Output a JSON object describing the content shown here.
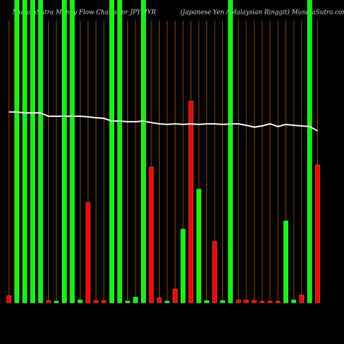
{
  "chart_data": {
    "type": "bar",
    "title": "MunafaSutra Money Flow Charts for JPYMYR",
    "subtitle": "(Japanese Yen / Malaysian Ringgit) MunafaSutra.com",
    "categories": [
      null,
      null,
      null,
      null,
      null,
      null,
      null,
      null,
      null,
      null,
      null,
      null,
      null,
      null,
      null,
      null,
      null,
      null,
      null,
      null,
      null,
      null,
      null,
      null,
      null,
      null,
      null,
      null,
      null,
      null,
      null,
      null,
      null,
      null,
      null,
      null,
      null,
      null,
      null,
      null
    ],
    "ylim": [
      0,
      100
    ],
    "background": "#000000",
    "grid_color": "#b35f00",
    "series": [
      {
        "type": "bar",
        "colors": [
          "#ff0000",
          "#00ff00",
          "#00ff00",
          "#00ff00",
          "#00ff00",
          "#ff0000",
          "#00ff00",
          "#00ff00",
          "#00ff00",
          "#00ff00",
          "#ff0000",
          "#ff0000",
          "#ff0000",
          "#00ff00",
          "#00ff00",
          "#00ff00",
          "#00ff00",
          "#00ff00",
          "#ff0000",
          "#ff0000",
          "#00ff00",
          "#ff0000",
          "#00ff00",
          "#ff0000",
          "#00ff00",
          "#00ff00",
          "#ff0000",
          "#00ff00",
          "#00ff00",
          "#ff0000",
          "#ff0000",
          "#ff0000",
          "#ff0000",
          "#ff0000",
          "#ff0000",
          "#00ff00",
          "#00ff00",
          "#ff0000",
          "#00ff00",
          "#ff0000"
        ],
        "values": [
          2.3,
          100,
          100,
          100,
          100,
          0.7,
          0.5,
          100,
          100,
          0.9,
          33,
          0.7,
          0.7,
          100,
          100,
          0.5,
          1.8,
          100,
          44.8,
          1.6,
          0.5,
          4.5,
          24.3,
          66.6,
          37.5,
          0.7,
          20.2,
          0.7,
          100,
          0.9,
          0.9,
          0.7,
          0.5,
          0.5,
          0.5,
          27,
          0.9,
          2.5,
          100,
          45.5
        ]
      },
      {
        "type": "line",
        "color": "#ffffff",
        "values": [
          63.0,
          63.0,
          62.7,
          62.7,
          62.7,
          61.6,
          61.6,
          61.6,
          61.6,
          61.6,
          61.4,
          61.1,
          60.9,
          60.0,
          60.0,
          59.8,
          59.8,
          60.0,
          59.5,
          59.1,
          58.9,
          59.1,
          58.9,
          59.1,
          58.9,
          59.1,
          59.1,
          58.9,
          59.1,
          59.1,
          58.6,
          58.0,
          58.4,
          59.1,
          58.2,
          58.9,
          58.6,
          58.4,
          58.2,
          56.8
        ]
      }
    ]
  }
}
